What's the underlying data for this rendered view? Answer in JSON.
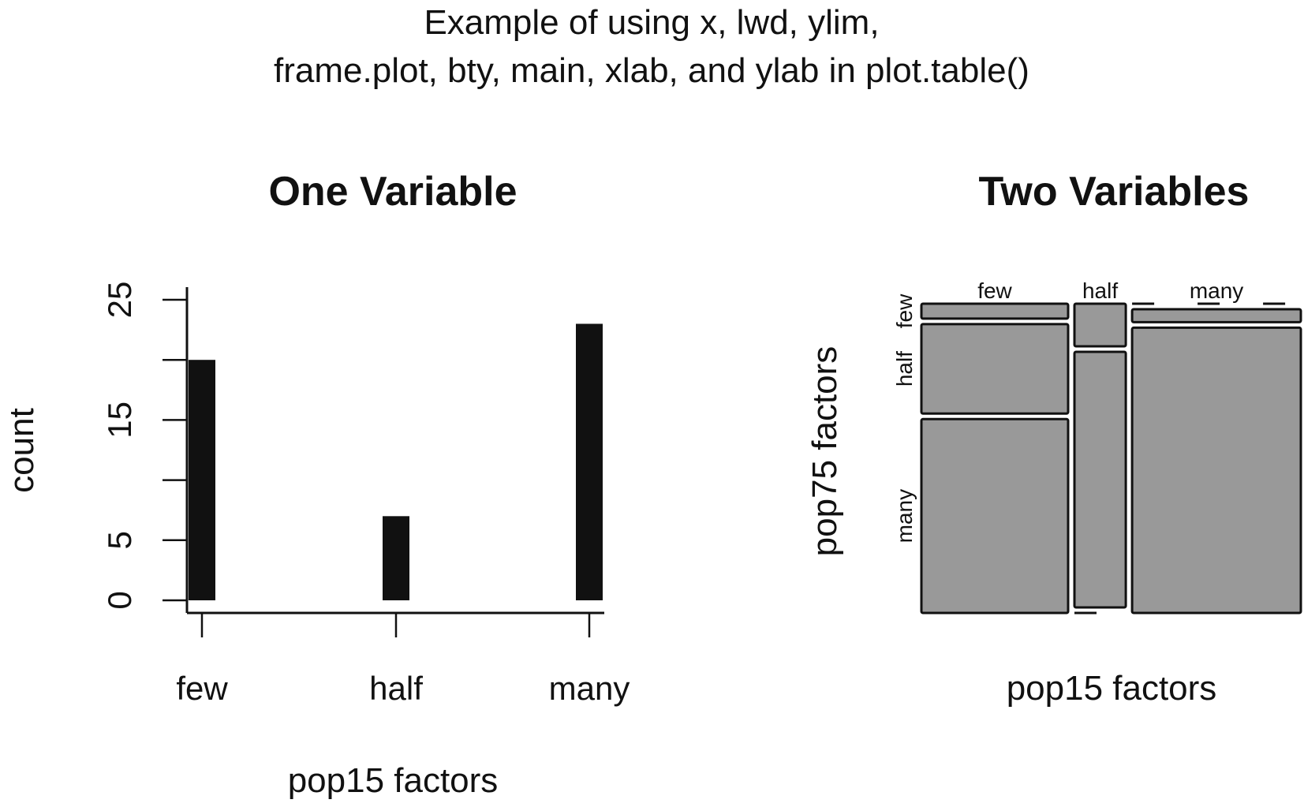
{
  "figure": {
    "title_line1": "Example of using x, lwd, ylim,",
    "title_line2": "frame.plot, bty, main, xlab, and ylab in plot.table()"
  },
  "chart_data": [
    {
      "type": "bar",
      "title": "One Variable",
      "xlabel": "pop15 factors",
      "ylabel": "count",
      "categories": [
        "few",
        "half",
        "many"
      ],
      "values": [
        20,
        7,
        23
      ],
      "ylim": [
        0,
        25
      ],
      "yticks": [
        0,
        5,
        10,
        15,
        20,
        25
      ],
      "ytick_labels": [
        "0",
        "5",
        "",
        "15",
        "",
        "25"
      ],
      "colors": {
        "bar": "#111111",
        "axis": "#111111"
      }
    },
    {
      "type": "mosaic",
      "title": "Two Variables",
      "xlabel": "pop15 factors",
      "ylabel": "pop75 factors",
      "x_categories": [
        "few",
        "half",
        "many"
      ],
      "y_categories": [
        "few",
        "half",
        "many"
      ],
      "counts": [
        [
          1,
          6,
          13
        ],
        [
          1,
          6,
          0
        ],
        [
          0,
          1,
          22
        ]
      ],
      "colors": {
        "cell": "#999999",
        "border": "#111111"
      }
    }
  ]
}
